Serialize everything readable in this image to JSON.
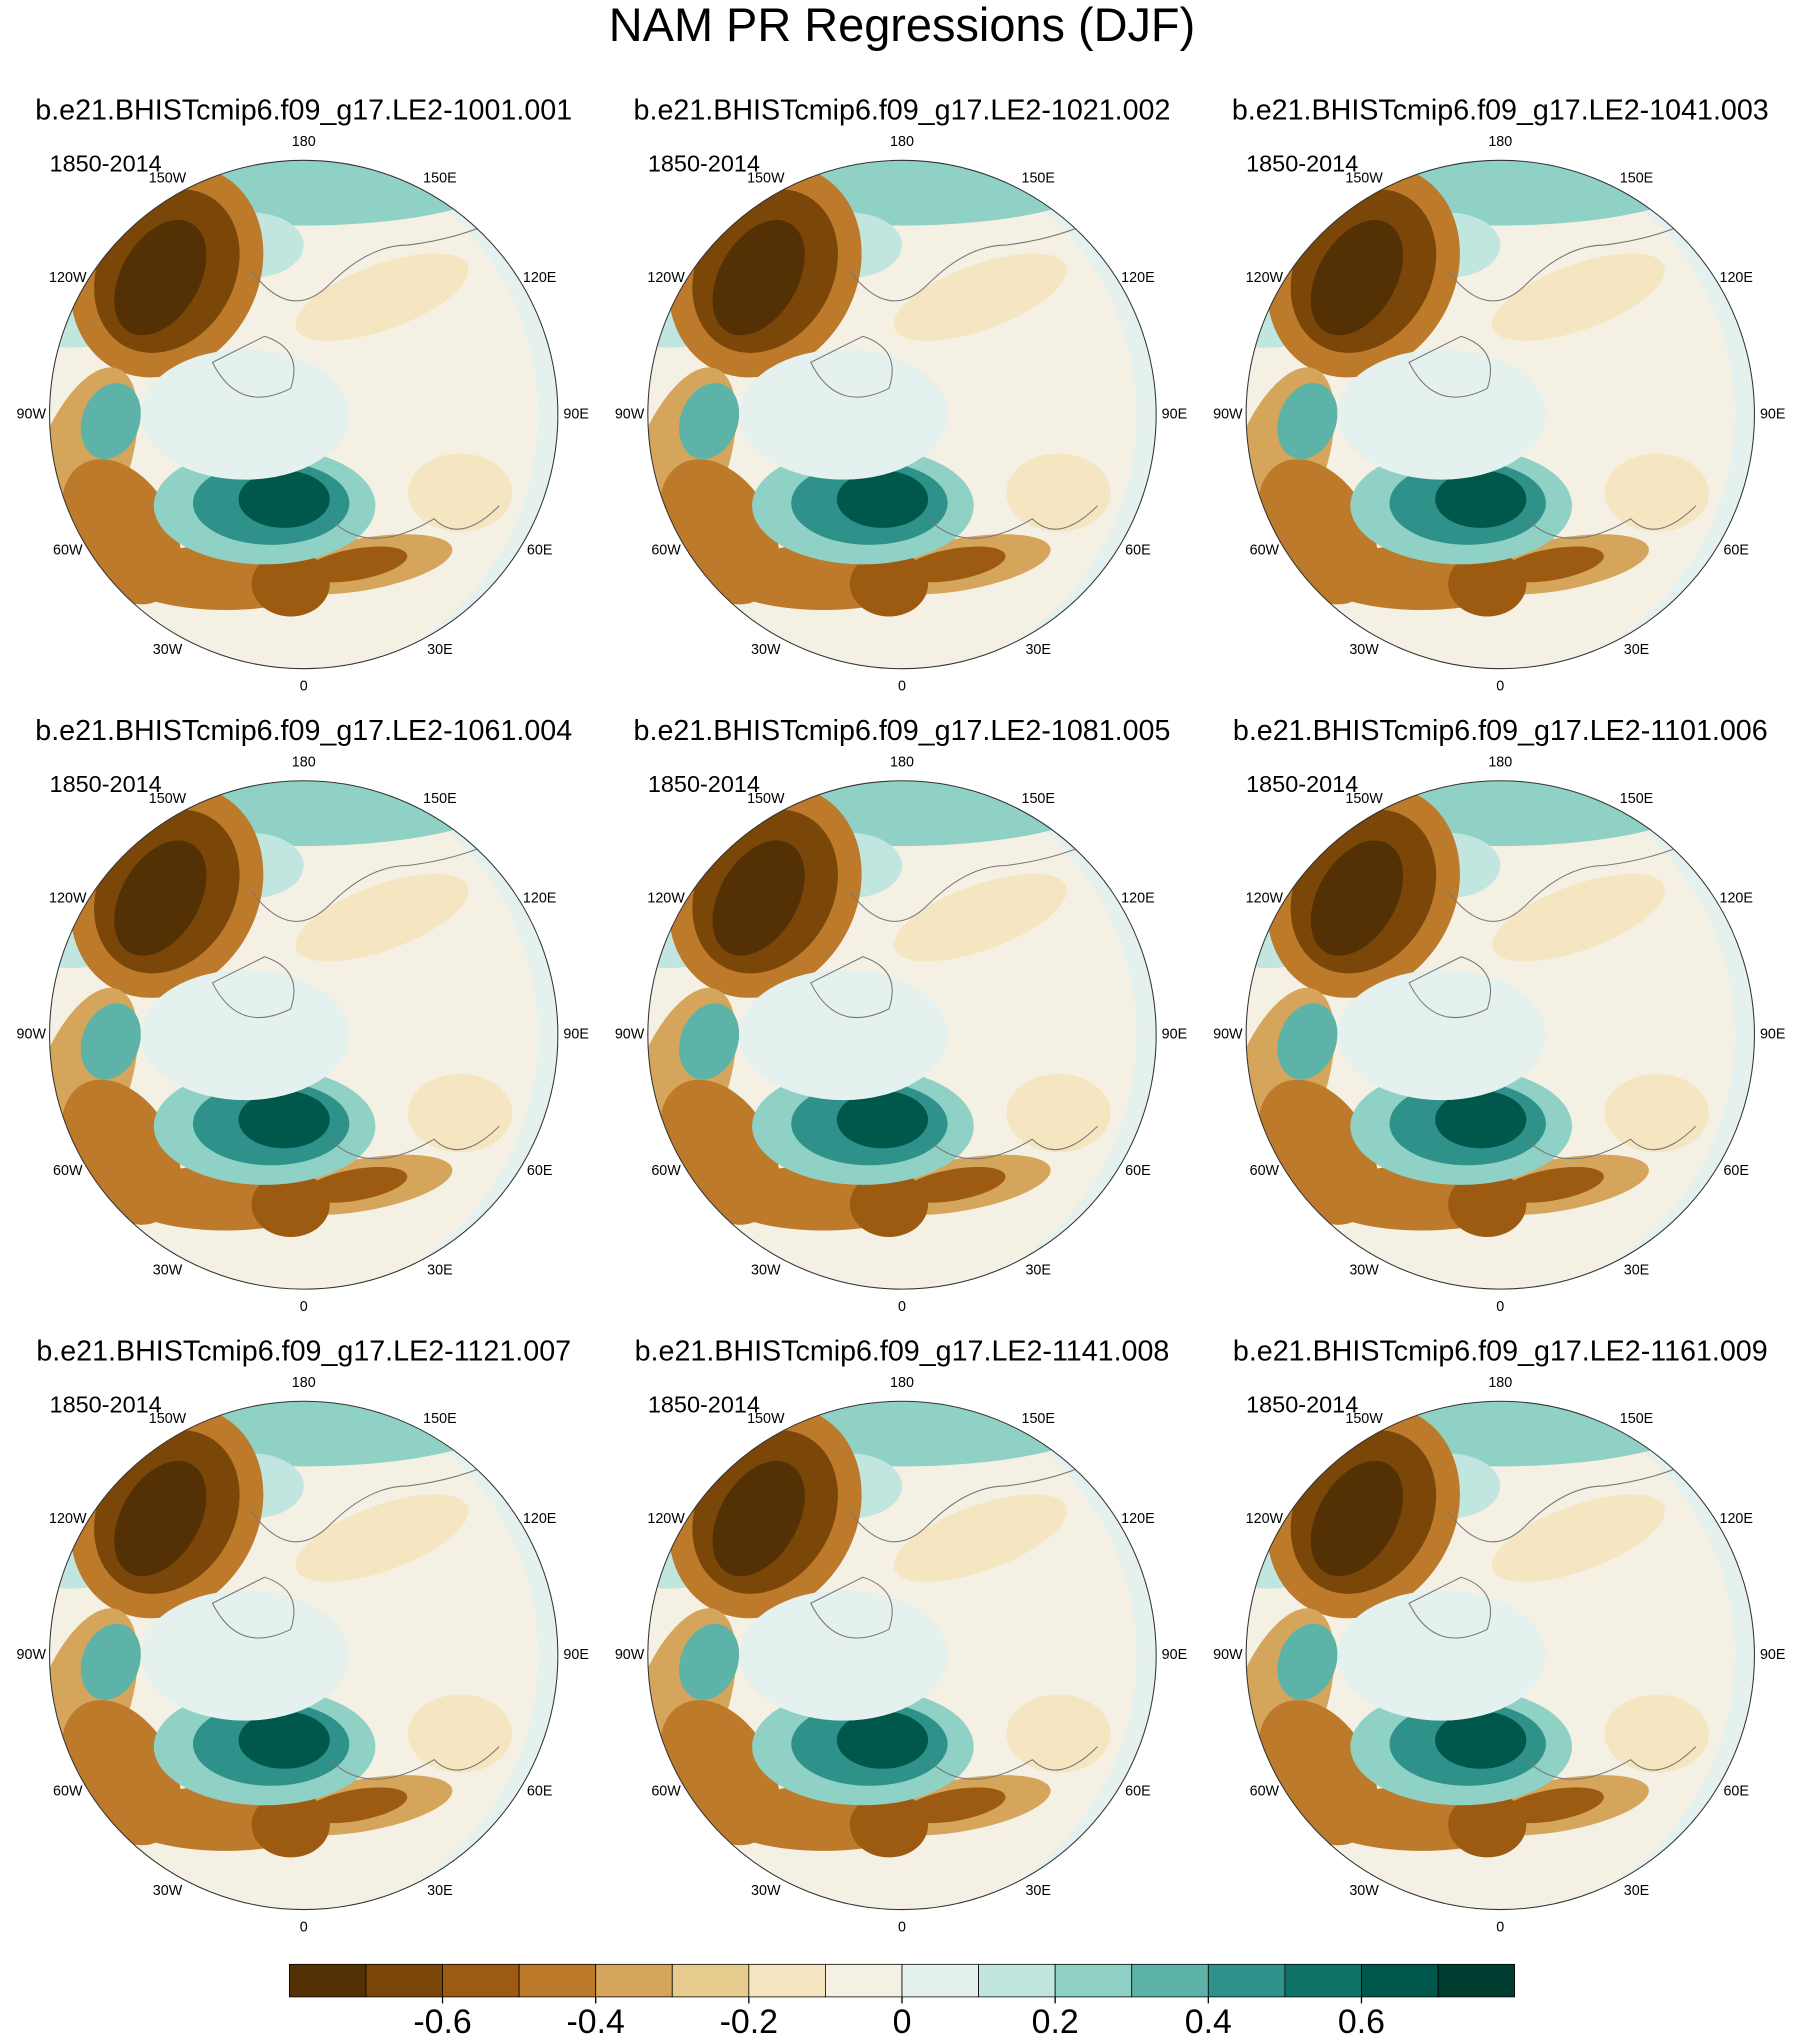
{
  "chart_data": {
    "type": "polar-map-grid",
    "title": "NAM PR Regressions (DJF)",
    "panels": [
      {
        "title": "b.e21.BHISTcmip6.f09_g17.LE2-1001.001",
        "subtitle": "1850-2014"
      },
      {
        "title": "b.e21.BHISTcmip6.f09_g17.LE2-1021.002",
        "subtitle": "1850-2014"
      },
      {
        "title": "b.e21.BHISTcmip6.f09_g17.LE2-1041.003",
        "subtitle": "1850-2014"
      },
      {
        "title": "b.e21.BHISTcmip6.f09_g17.LE2-1061.004",
        "subtitle": "1850-2014"
      },
      {
        "title": "b.e21.BHISTcmip6.f09_g17.LE2-1081.005",
        "subtitle": "1850-2014"
      },
      {
        "title": "b.e21.BHISTcmip6.f09_g17.LE2-1101.006",
        "subtitle": "1850-2014"
      },
      {
        "title": "b.e21.BHISTcmip6.f09_g17.LE2-1121.007",
        "subtitle": "1850-2014"
      },
      {
        "title": "b.e21.BHISTcmip6.f09_g17.LE2-1141.008",
        "subtitle": "1850-2014"
      },
      {
        "title": "b.e21.BHISTcmip6.f09_g17.LE2-1161.009",
        "subtitle": "1850-2014"
      }
    ],
    "lon_labels": [
      "180",
      "150E",
      "120E",
      "90E",
      "60E",
      "30E",
      "0",
      "30W",
      "60W",
      "90W",
      "120W",
      "150W"
    ],
    "colorbar": {
      "colors": [
        "#543005",
        "#7a4709",
        "#9c5b10",
        "#bd7a2a",
        "#d5a55b",
        "#e8cc8f",
        "#f5e5c0",
        "#f5f0e4",
        "#e4f1ef",
        "#c0e6df",
        "#8fd1c5",
        "#5db3a8",
        "#2f928a",
        "#107369",
        "#00584d",
        "#003c30"
      ],
      "lim": [
        -0.8,
        0.8
      ],
      "ticks": [
        -0.6,
        -0.4,
        -0.2,
        0,
        0.2,
        0.4,
        0.6
      ]
    }
  }
}
